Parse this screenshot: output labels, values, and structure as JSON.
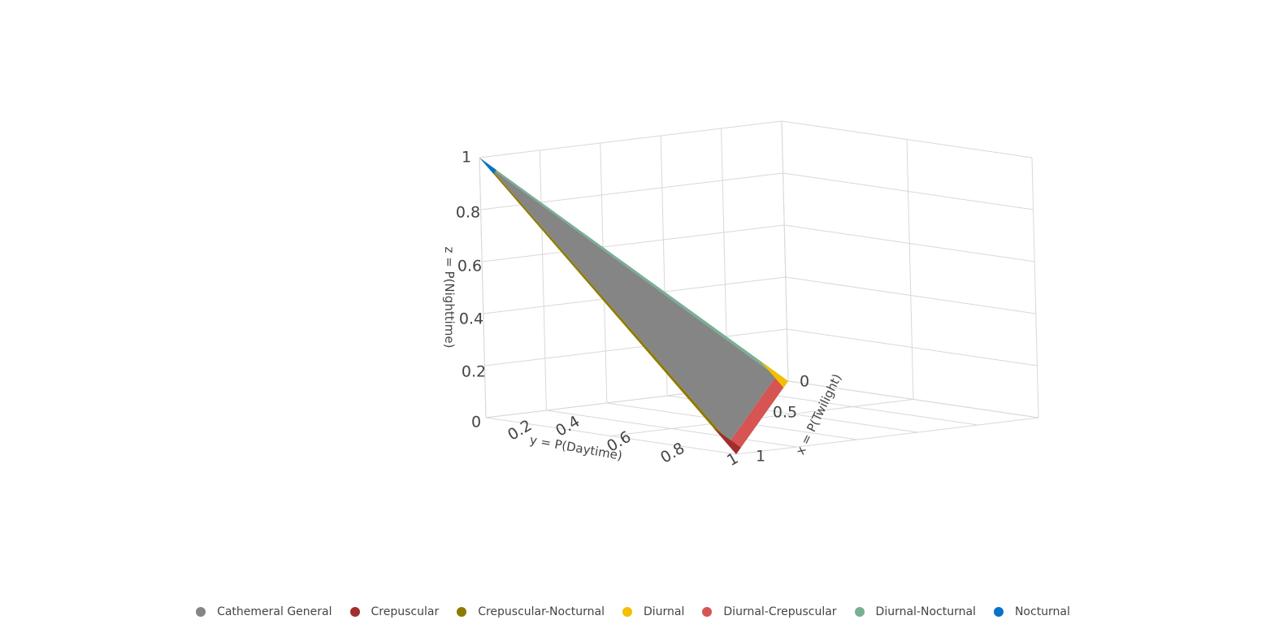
{
  "chart_data": {
    "type": "scatter3d",
    "xlabel": "x = P(Twilight)",
    "ylabel": "y = P(Daytime)",
    "zlabel": "z = P(Nighttime)",
    "x_ticks": [
      "0",
      "0.5",
      "1"
    ],
    "y_ticks": [
      "0",
      "0.2",
      "0.4",
      "0.6",
      "0.8",
      "1"
    ],
    "z_ticks": [
      "0",
      "0.2",
      "0.4",
      "0.6",
      "0.8",
      "1"
    ],
    "xlim": [
      0,
      1
    ],
    "ylim": [
      0,
      1
    ],
    "zlim": [
      0,
      1
    ],
    "grid": true,
    "legend_position": "bottom",
    "series": [
      {
        "name": "Cathemeral General",
        "color": "#858585",
        "region": "interior of simplex"
      },
      {
        "name": "Crepuscular",
        "color": "#a12e2e",
        "region": "twilight corner"
      },
      {
        "name": "Crepuscular-Nocturnal",
        "color": "#8f7a00",
        "region": "twilight-nighttime edge"
      },
      {
        "name": "Diurnal",
        "color": "#f2c000",
        "region": "daytime corner"
      },
      {
        "name": "Diurnal-Crepuscular",
        "color": "#d65451",
        "region": "daytime-twilight edge"
      },
      {
        "name": "Diurnal-Nocturnal",
        "color": "#78b094",
        "region": "daytime-nighttime edge"
      },
      {
        "name": "Nocturnal",
        "color": "#0a72c4",
        "region": "nighttime corner"
      }
    ]
  }
}
